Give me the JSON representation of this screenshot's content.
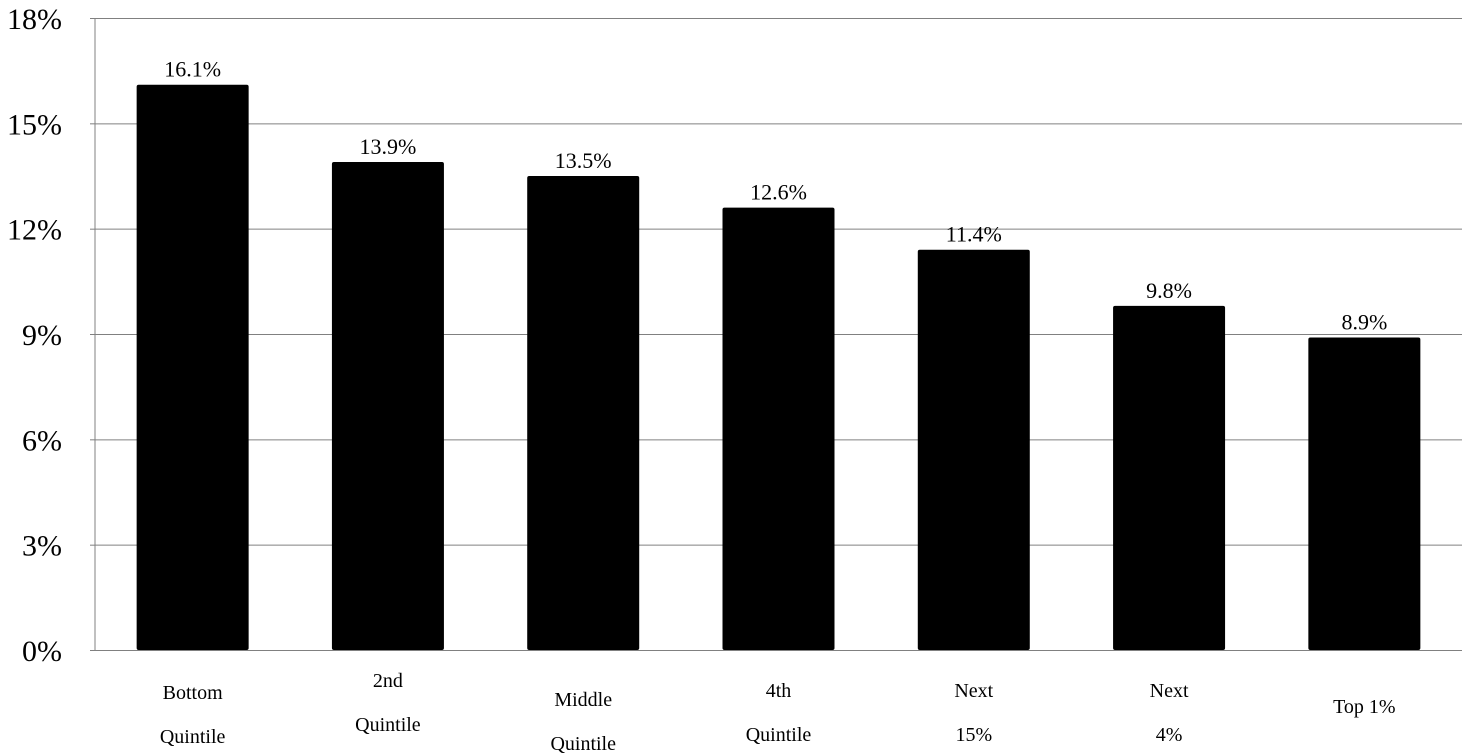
{
  "chart_data": {
    "type": "bar",
    "categories": [
      [
        "Bottom",
        "Quintile"
      ],
      [
        "2nd",
        "Quintile"
      ],
      [
        "Middle",
        "Quintile"
      ],
      [
        "4th",
        "Quintile"
      ],
      [
        "Next",
        "15%"
      ],
      [
        "Next",
        "4%"
      ],
      [
        "Top 1%"
      ]
    ],
    "values": [
      16.1,
      13.9,
      13.5,
      12.6,
      11.4,
      9.8,
      8.9
    ],
    "value_labels": [
      "16.1%",
      "13.9%",
      "13.5%",
      "12.6%",
      "11.4%",
      "9.8%",
      "8.9%"
    ],
    "yticks": [
      0,
      3,
      6,
      9,
      12,
      15,
      18
    ],
    "ytick_labels": [
      "0%",
      "3%",
      "6%",
      "9%",
      "12%",
      "15%",
      "18%"
    ],
    "ylim": [
      0,
      18
    ],
    "grid": true,
    "bar_color": "#000000",
    "grid_color": "#808080",
    "title": "",
    "xlabel": "",
    "ylabel": ""
  }
}
